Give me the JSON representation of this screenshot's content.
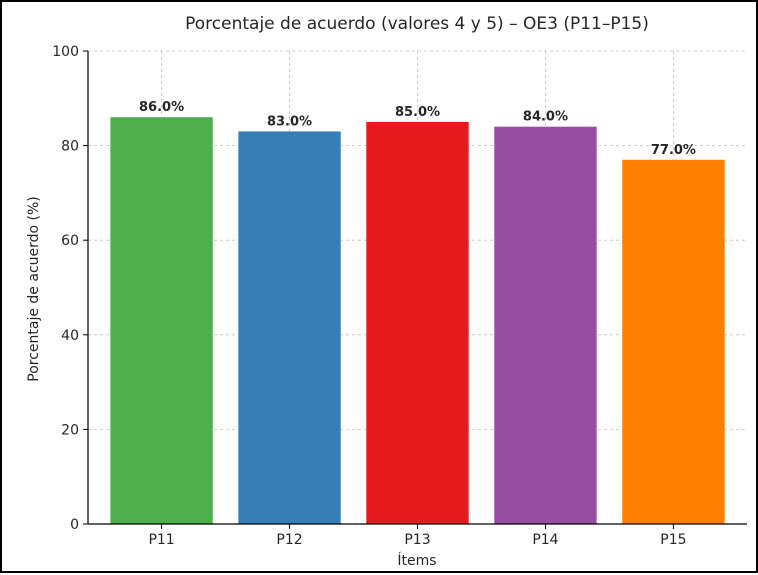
{
  "chart_data": {
    "type": "bar",
    "title": "Porcentaje de acuerdo (valores 4 y 5) – OE3 (P11–P15)",
    "xlabel": "Ítems",
    "ylabel": "Porcentaje de acuerdo (%)",
    "categories": [
      "P11",
      "P12",
      "P13",
      "P14",
      "P15"
    ],
    "values": [
      86.0,
      83.0,
      85.0,
      84.0,
      77.0
    ],
    "data_labels": [
      "86.0%",
      "83.0%",
      "85.0%",
      "84.0%",
      "77.0%"
    ],
    "colors": [
      "#4daf4a",
      "#377eb8",
      "#e41a1c",
      "#984ea3",
      "#ff7f00"
    ],
    "ylim": [
      0,
      100
    ],
    "yticks": [
      0,
      20,
      40,
      60,
      80,
      100
    ],
    "ytick_labels": [
      "0",
      "20",
      "40",
      "60",
      "80",
      "100"
    ],
    "grid": true,
    "legend": "none"
  }
}
